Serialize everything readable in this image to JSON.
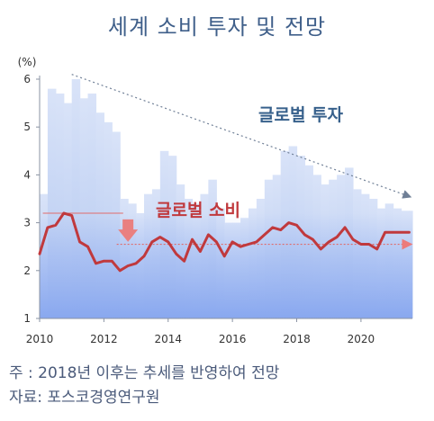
{
  "chart_data": {
    "type": "area",
    "title": "세계 소비 투자 및 전망",
    "yunit": "(%)",
    "ylim": [
      1,
      6
    ],
    "yticks": [
      "1",
      "2",
      "3",
      "4",
      "5",
      "6"
    ],
    "xlim": [
      2010,
      2021.6
    ],
    "xticks": [
      "2010",
      "2012",
      "2014",
      "2016",
      "2018",
      "2020"
    ],
    "series": [
      {
        "name": "글로벌 투자",
        "style": "area",
        "color": "#c6d4f3",
        "x": [
          2010.0,
          2010.25,
          2010.5,
          2010.75,
          2011.0,
          2011.25,
          2011.5,
          2011.75,
          2012.0,
          2012.25,
          2012.5,
          2012.75,
          2013.0,
          2013.25,
          2013.5,
          2013.75,
          2014.0,
          2014.25,
          2014.5,
          2014.75,
          2015.0,
          2015.25,
          2015.5,
          2015.75,
          2016.0,
          2016.25,
          2016.5,
          2016.75,
          2017.0,
          2017.25,
          2017.5,
          2017.75,
          2018.0,
          2018.25,
          2018.5,
          2018.75,
          2019.0,
          2019.25,
          2019.5,
          2019.75,
          2020.0,
          2020.25,
          2020.5,
          2020.75,
          2021.0,
          2021.25,
          2021.5
        ],
        "values": [
          3.6,
          5.8,
          5.7,
          5.5,
          6.0,
          5.6,
          5.7,
          5.3,
          5.1,
          4.9,
          3.5,
          3.4,
          3.2,
          3.6,
          3.7,
          4.5,
          4.4,
          3.8,
          3.5,
          3.4,
          3.6,
          3.9,
          3.3,
          3.0,
          3.0,
          3.1,
          3.3,
          3.5,
          3.9,
          4.0,
          4.5,
          4.6,
          4.4,
          4.2,
          4.0,
          3.8,
          3.9,
          4.0,
          4.15,
          3.7,
          3.6,
          3.5,
          3.3,
          3.4,
          3.3,
          3.25,
          3.25
        ]
      },
      {
        "name": "글로벌 소비",
        "style": "line",
        "color": "#c0393d",
        "x": [
          2010.0,
          2010.25,
          2010.5,
          2010.75,
          2011.0,
          2011.25,
          2011.5,
          2011.75,
          2012.0,
          2012.25,
          2012.5,
          2012.75,
          2013.0,
          2013.25,
          2013.5,
          2013.75,
          2014.0,
          2014.25,
          2014.5,
          2014.75,
          2015.0,
          2015.25,
          2015.5,
          2015.75,
          2016.0,
          2016.25,
          2016.5,
          2016.75,
          2017.0,
          2017.25,
          2017.5,
          2017.75,
          2018.0,
          2018.25,
          2018.5,
          2018.75,
          2019.0,
          2019.25,
          2019.5,
          2019.75,
          2020.0,
          2020.25,
          2020.5,
          2020.75,
          2021.0,
          2021.25,
          2021.5
        ],
        "values": [
          2.35,
          2.9,
          2.95,
          3.2,
          3.15,
          2.6,
          2.5,
          2.15,
          2.2,
          2.2,
          2.0,
          2.1,
          2.15,
          2.3,
          2.6,
          2.7,
          2.6,
          2.35,
          2.2,
          2.65,
          2.4,
          2.75,
          2.6,
          2.3,
          2.6,
          2.5,
          2.55,
          2.6,
          2.75,
          2.9,
          2.85,
          3.0,
          2.95,
          2.75,
          2.65,
          2.45,
          2.6,
          2.7,
          2.9,
          2.65,
          2.55,
          2.55,
          2.45,
          2.8,
          2.8,
          2.8,
          2.8
        ]
      }
    ],
    "annotations": {
      "investment_trend": {
        "x1": 2011.0,
        "y1": 6.1,
        "x2": 2021.5,
        "y2": 3.55,
        "color": "#6f7f96"
      },
      "consumption_ref_line": {
        "x1": 2010.1,
        "x2": 2012.6,
        "y": 3.2,
        "color": "#e06b6b"
      },
      "consumption_trend": {
        "x1": 2012.4,
        "x2": 2021.5,
        "y": 2.55,
        "color": "#e06b6b"
      },
      "down_arrow": {
        "x": 2012.75,
        "y_top": 3.07,
        "y_bottom": 2.6,
        "color": "#e98080"
      },
      "label_investment": {
        "text": "글로벌 투자",
        "color": "#38618c"
      },
      "label_consumption": {
        "text": "글로벌 소비",
        "color": "#c0393d"
      }
    }
  },
  "footnotes": {
    "note": "주 : 2018년 이후는 추세를 반영하여 전망",
    "source": "자료: 포스코경영연구원"
  }
}
